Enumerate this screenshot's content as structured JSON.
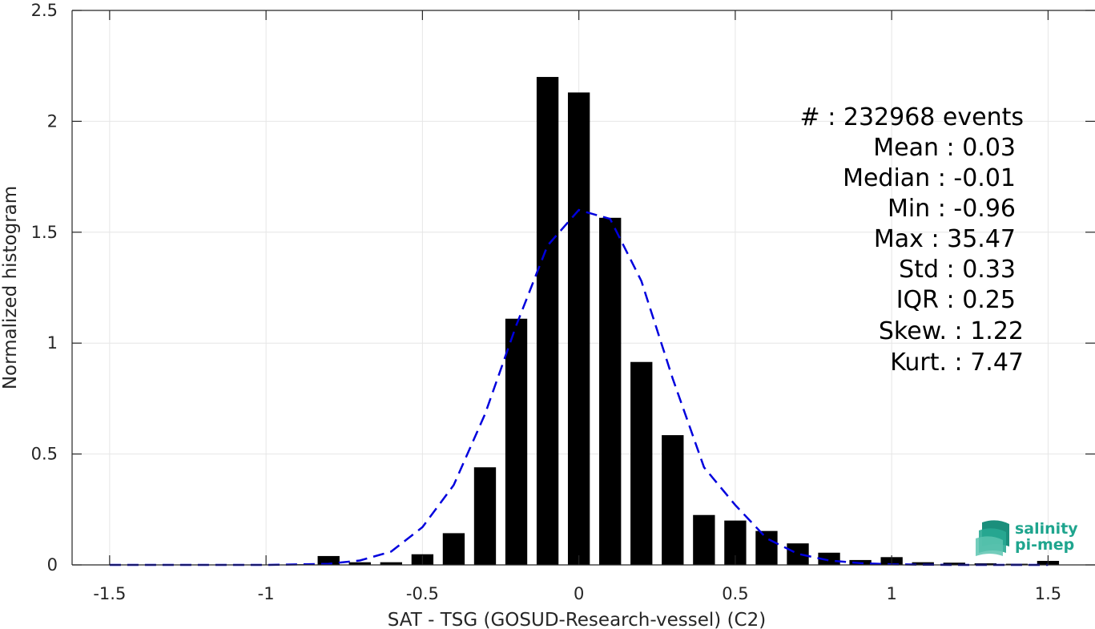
{
  "chart_data": {
    "type": "bar",
    "xlabel": "SAT - TSG (GOSUD-Research-vessel) (C2)",
    "ylabel": "Normalized histogram",
    "xlim": [
      -1.62,
      1.65
    ],
    "ylim": [
      0,
      2.5
    ],
    "x_ticks": [
      -1.5,
      -1,
      -0.5,
      0,
      0.5,
      1,
      1.5
    ],
    "x_tick_labels": [
      "-1.5",
      "-1",
      "-0.5",
      "0",
      "0.5",
      "1",
      "1.5"
    ],
    "y_ticks": [
      0,
      0.5,
      1,
      1.5,
      2,
      2.5
    ],
    "y_tick_labels": [
      "0",
      "0.5",
      "1",
      "1.5",
      "2",
      "2.5"
    ],
    "grid": true,
    "bar_width": 0.07,
    "bar_color": "#000000",
    "bars": {
      "x": [
        -1.5,
        -1.4,
        -1.3,
        -1.2,
        -1.1,
        -1.0,
        -0.9,
        -0.8,
        -0.7,
        -0.6,
        -0.5,
        -0.4,
        -0.3,
        -0.2,
        -0.1,
        0.0,
        0.1,
        0.2,
        0.3,
        0.4,
        0.5,
        0.6,
        0.7,
        0.8,
        0.9,
        1.0,
        1.1,
        1.2,
        1.3,
        1.4,
        1.5
      ],
      "values": [
        0,
        0,
        0,
        0,
        0,
        0,
        0.003,
        0.04,
        0.012,
        0.012,
        0.048,
        0.143,
        0.44,
        1.11,
        2.2,
        2.13,
        1.565,
        0.915,
        0.585,
        0.225,
        0.2,
        0.153,
        0.097,
        0.055,
        0.022,
        0.035,
        0.012,
        0.01,
        0.007,
        0.005,
        0.018
      ]
    },
    "fit_curve": {
      "style": "dashed",
      "color": "#0000dd",
      "x": [
        -1.5,
        -1.4,
        -1.3,
        -1.2,
        -1.1,
        -1.0,
        -0.9,
        -0.8,
        -0.7,
        -0.6,
        -0.5,
        -0.4,
        -0.3,
        -0.2,
        -0.1,
        0.0,
        0.1,
        0.2,
        0.3,
        0.4,
        0.5,
        0.6,
        0.7,
        0.8,
        0.9,
        1.0,
        1.1,
        1.2,
        1.3,
        1.4,
        1.5
      ],
      "values": [
        0,
        0,
        0,
        0,
        0,
        0,
        0.002,
        0.005,
        0.02,
        0.06,
        0.17,
        0.36,
        0.68,
        1.08,
        1.44,
        1.6,
        1.56,
        1.28,
        0.84,
        0.44,
        0.27,
        0.12,
        0.05,
        0.02,
        0.008,
        0.003,
        0.001,
        0,
        0,
        0,
        0
      ]
    },
    "annotations": [
      "#  : 232968 events",
      "Mean : 0.03",
      "Median : -0.01",
      "Min : -0.96",
      "Max : 35.47",
      "Std : 0.33",
      "IQR : 0.25",
      "Skew. : 1.22",
      "Kurt. : 7.47"
    ]
  },
  "logo": {
    "line1": "salinity",
    "line2": "pi-mep",
    "icon": "wave-layers-icon",
    "color": "#1fa58e"
  }
}
